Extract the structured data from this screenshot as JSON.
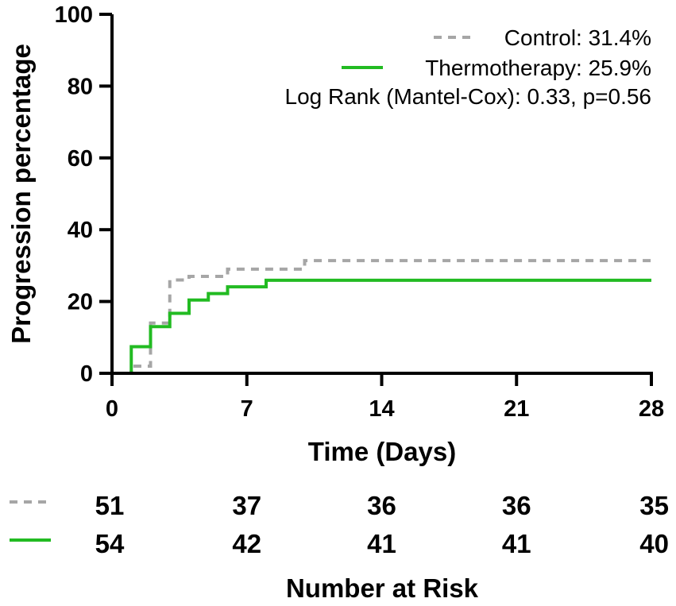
{
  "chart_data": {
    "type": "line",
    "subtype": "kaplan-meier-step",
    "title": "",
    "xlabel": "Time (Days)",
    "ylabel": "Progression percentage",
    "xlim": [
      0,
      28
    ],
    "ylim": [
      0,
      100
    ],
    "xticks": [
      0,
      7,
      14,
      21,
      28
    ],
    "yticks": [
      0,
      20,
      40,
      60,
      80,
      100
    ],
    "xtick_labels": [
      "0",
      "7",
      "14",
      "21",
      "28"
    ],
    "ytick_labels": [
      "0",
      "20",
      "40",
      "60",
      "80",
      "100"
    ],
    "legend_position": "top-right",
    "series": [
      {
        "name": "Control",
        "legend_label": "Control: 31.4%",
        "color": "#a6a6a6",
        "dash": true,
        "steps": [
          [
            0,
            0
          ],
          [
            1,
            2
          ],
          [
            2,
            4
          ],
          [
            2,
            14
          ],
          [
            3,
            26
          ],
          [
            4,
            27
          ],
          [
            6,
            29
          ],
          [
            10,
            31.4
          ],
          [
            28,
            31.4
          ]
        ]
      },
      {
        "name": "Thermotherapy",
        "legend_label": "Thermotherapy: 25.9%",
        "color": "#22bb22",
        "dash": false,
        "steps": [
          [
            0,
            0
          ],
          [
            1,
            7.4
          ],
          [
            2,
            13
          ],
          [
            3,
            16.7
          ],
          [
            4,
            20.4
          ],
          [
            5,
            22.2
          ],
          [
            6,
            24.1
          ],
          [
            8,
            25.9
          ],
          [
            28,
            25.9
          ]
        ]
      }
    ],
    "annotation": "Log Rank (Mantel-Cox): 0.33, p=0.56",
    "risk_table": {
      "title": "Number at Risk",
      "rows": [
        {
          "name": "Control",
          "color": "#a6a6a6",
          "dash": true,
          "values": [
            "51",
            "37",
            "36",
            "36",
            "35"
          ]
        },
        {
          "name": "Thermotherapy",
          "color": "#22bb22",
          "dash": false,
          "values": [
            "54",
            "42",
            "41",
            "41",
            "40"
          ]
        }
      ]
    }
  }
}
